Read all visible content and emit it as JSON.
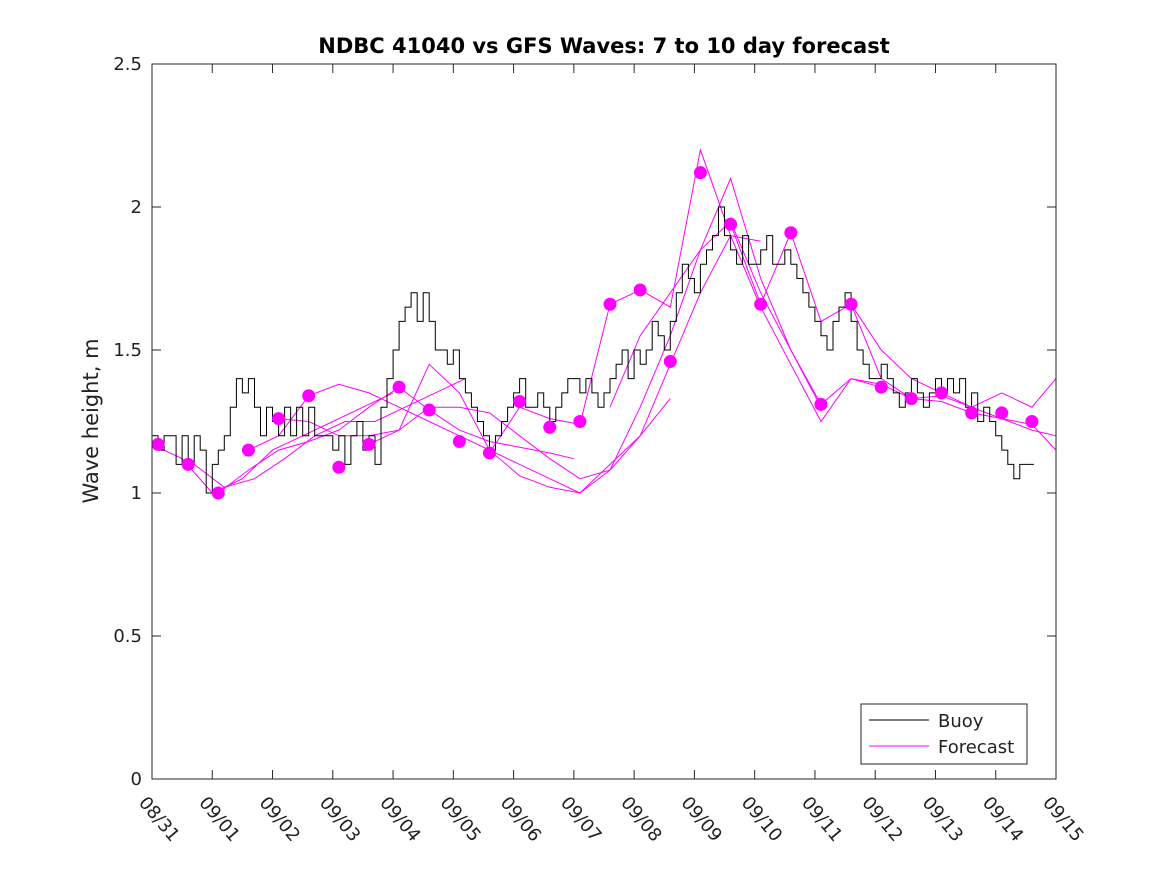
{
  "chart_data": {
    "type": "line",
    "title": "NDBC 41040 vs GFS Waves: 7 to 10 day forecast",
    "xlabel": "",
    "ylabel": "Wave height, m",
    "xlim": [
      0,
      15
    ],
    "ylim": [
      0,
      2.5
    ],
    "x_tick_labels": [
      "08/31",
      "09/01",
      "09/02",
      "09/03",
      "09/04",
      "09/05",
      "09/06",
      "09/07",
      "09/08",
      "09/09",
      "09/10",
      "09/11",
      "09/12",
      "09/13",
      "09/14",
      "09/15"
    ],
    "y_ticks": [
      0,
      0.5,
      1,
      1.5,
      2,
      2.5
    ],
    "y_tick_labels": [
      "0",
      "0.5",
      "1",
      "1.5",
      "2",
      "2.5"
    ],
    "legend": {
      "position": "bottom-right",
      "entries": [
        "Buoy",
        "Forecast"
      ]
    },
    "colors": {
      "buoy": "#000000",
      "forecast": "#ff00ff"
    },
    "series": [
      {
        "name": "Buoy",
        "x": [
          0,
          0.1,
          0.2,
          0.3,
          0.4,
          0.5,
          0.6,
          0.7,
          0.8,
          0.9,
          1.0,
          1.1,
          1.2,
          1.3,
          1.4,
          1.5,
          1.6,
          1.7,
          1.8,
          1.9,
          2.0,
          2.1,
          2.2,
          2.3,
          2.4,
          2.5,
          2.6,
          2.7,
          2.8,
          2.9,
          3.0,
          3.1,
          3.2,
          3.3,
          3.4,
          3.5,
          3.6,
          3.7,
          3.8,
          3.9,
          4.0,
          4.1,
          4.2,
          4.3,
          4.4,
          4.5,
          4.6,
          4.7,
          4.8,
          4.9,
          5.0,
          5.1,
          5.2,
          5.3,
          5.4,
          5.5,
          5.6,
          5.7,
          5.8,
          5.9,
          6.0,
          6.1,
          6.2,
          6.3,
          6.4,
          6.5,
          6.6,
          6.7,
          6.8,
          6.9,
          7.0,
          7.1,
          7.2,
          7.3,
          7.4,
          7.5,
          7.6,
          7.7,
          7.8,
          7.9,
          8.0,
          8.1,
          8.2,
          8.3,
          8.4,
          8.5,
          8.6,
          8.7,
          8.8,
          8.9,
          9.0,
          9.1,
          9.2,
          9.3,
          9.4,
          9.5,
          9.6,
          9.7,
          9.8,
          9.9,
          10.0,
          10.1,
          10.2,
          10.3,
          10.4,
          10.5,
          10.6,
          10.7,
          10.8,
          10.9,
          11.0,
          11.1,
          11.2,
          11.3,
          11.4,
          11.5,
          11.6,
          11.7,
          11.8,
          11.9,
          12.0,
          12.1,
          12.2,
          12.3,
          12.4,
          12.5,
          12.6,
          12.7,
          12.8,
          12.9,
          13.0,
          13.1,
          13.2,
          13.3,
          13.4,
          13.5,
          13.6,
          13.7,
          13.8,
          13.9,
          14.0,
          14.1,
          14.2,
          14.3,
          14.4,
          14.5
        ],
        "values": [
          1.2,
          1.15,
          1.2,
          1.2,
          1.1,
          1.2,
          1.1,
          1.2,
          1.15,
          1.0,
          1.1,
          1.15,
          1.2,
          1.3,
          1.4,
          1.35,
          1.4,
          1.3,
          1.2,
          1.3,
          1.25,
          1.2,
          1.3,
          1.2,
          1.3,
          1.2,
          1.3,
          1.2,
          1.2,
          1.2,
          1.15,
          1.2,
          1.1,
          1.2,
          1.25,
          1.15,
          1.2,
          1.1,
          1.3,
          1.4,
          1.5,
          1.6,
          1.65,
          1.7,
          1.6,
          1.7,
          1.6,
          1.5,
          1.5,
          1.45,
          1.5,
          1.4,
          1.35,
          1.3,
          1.25,
          1.2,
          1.15,
          1.2,
          1.25,
          1.3,
          1.35,
          1.4,
          1.3,
          1.3,
          1.35,
          1.3,
          1.25,
          1.3,
          1.35,
          1.4,
          1.4,
          1.35,
          1.4,
          1.35,
          1.3,
          1.35,
          1.4,
          1.45,
          1.5,
          1.4,
          1.5,
          1.45,
          1.5,
          1.6,
          1.55,
          1.5,
          1.6,
          1.7,
          1.8,
          1.75,
          1.7,
          1.8,
          1.85,
          1.9,
          2.0,
          1.9,
          1.85,
          1.8,
          1.9,
          1.8,
          1.8,
          1.85,
          1.9,
          1.8,
          1.8,
          1.85,
          1.8,
          1.75,
          1.7,
          1.65,
          1.6,
          1.55,
          1.5,
          1.6,
          1.65,
          1.7,
          1.6,
          1.5,
          1.45,
          1.4,
          1.4,
          1.45,
          1.4,
          1.35,
          1.3,
          1.35,
          1.4,
          1.35,
          1.3,
          1.35,
          1.4,
          1.35,
          1.4,
          1.35,
          1.4,
          1.3,
          1.35,
          1.25,
          1.3,
          1.25,
          1.2,
          1.15,
          1.1,
          1.05,
          1.1,
          1.1
        ]
      },
      {
        "name": "Forecast",
        "lines": [
          {
            "x": [
              0,
              0.5,
              1,
              1.5,
              2,
              2.5,
              3,
              3.5,
              4
            ],
            "values": [
              1.17,
              1.12,
              1.0,
              1.05,
              1.15,
              1.2,
              1.25,
              1.3,
              1.35
            ]
          },
          {
            "x": [
              0.7,
              1.2,
              1.7,
              2.2,
              2.7,
              3.2,
              3.7,
              4.2,
              4.7,
              5.2
            ],
            "values": [
              1.1,
              1.02,
              1.05,
              1.12,
              1.2,
              1.25,
              1.25,
              1.3,
              1.35,
              1.4
            ]
          },
          {
            "x": [
              1.1,
              1.6,
              2.1,
              2.6,
              3.1,
              3.6,
              4.1,
              4.6,
              5.1,
              5.6,
              6.1,
              6.6,
              7.0
            ],
            "values": [
              1.0,
              1.08,
              1.15,
              1.18,
              1.22,
              1.3,
              1.37,
              1.29,
              1.22,
              1.18,
              1.16,
              1.14,
              1.12
            ]
          },
          {
            "x": [
              1.6,
              2.1,
              2.6,
              3.1,
              3.6,
              4.1,
              4.6,
              5.1,
              5.6,
              6.1,
              6.6,
              7.1,
              7.6,
              8.1,
              8.6
            ],
            "values": [
              1.15,
              1.2,
              1.34,
              1.38,
              1.35,
              1.3,
              1.25,
              1.2,
              1.15,
              1.1,
              1.05,
              1.0,
              1.1,
              1.2,
              1.33
            ]
          },
          {
            "x": [
              2.1,
              2.6,
              3.1,
              3.6,
              4.1,
              4.6,
              5.1,
              5.6,
              6.1,
              6.6,
              7.1,
              7.6,
              8.1,
              8.6,
              9.1,
              9.6,
              10.1
            ],
            "values": [
              1.26,
              1.25,
              1.2,
              1.2,
              1.22,
              1.45,
              1.35,
              1.15,
              1.06,
              1.02,
              1.0,
              1.08,
              1.2,
              1.45,
              1.7,
              1.9,
              1.88
            ]
          },
          {
            "x": [
              3.6,
              4.1,
              4.6,
              5.1,
              5.6,
              6.1,
              6.6,
              7.1,
              7.6,
              8.1,
              8.6,
              9.1,
              9.6,
              10.1,
              10.6,
              11.1
            ],
            "values": [
              1.17,
              1.22,
              1.3,
              1.3,
              1.28,
              1.2,
              1.12,
              1.05,
              1.08,
              1.3,
              1.55,
              1.85,
              2.1,
              1.75,
              1.5,
              1.3
            ]
          },
          {
            "x": [
              5.6,
              6.1,
              6.6,
              7.1,
              7.6,
              8.1,
              8.6,
              9.1,
              9.6,
              10.1,
              10.6,
              11.1,
              11.6,
              12.1
            ],
            "values": [
              1.14,
              1.3,
              1.26,
              1.24,
              1.66,
              1.71,
              1.65,
              2.2,
              1.9,
              1.65,
              1.45,
              1.25,
              1.4,
              1.37
            ]
          },
          {
            "x": [
              7.6,
              8.1,
              8.6,
              9.1,
              9.6,
              10.1,
              10.6,
              11.1,
              11.6,
              12.1,
              12.6,
              13.1,
              13.6,
              14.1,
              14.6,
              15.0
            ],
            "values": [
              1.3,
              1.55,
              1.7,
              1.85,
              1.95,
              1.7,
              1.5,
              1.31,
              1.4,
              1.38,
              1.33,
              1.34,
              1.3,
              1.26,
              1.22,
              1.2
            ]
          },
          {
            "x": [
              9.6,
              10.1,
              10.6,
              11.1,
              11.6,
              12.1,
              12.6,
              13.1,
              13.6,
              14.1,
              14.6,
              15.0
            ],
            "values": [
              1.94,
              1.66,
              1.91,
              1.6,
              1.66,
              1.4,
              1.33,
              1.32,
              1.28,
              1.26,
              1.24,
              1.15
            ]
          },
          {
            "x": [
              11.6,
              12.1,
              12.6,
              13.1,
              13.6,
              14.1,
              14.6,
              15.0
            ],
            "values": [
              1.66,
              1.5,
              1.4,
              1.35,
              1.3,
              1.35,
              1.3,
              1.4
            ]
          }
        ],
        "marker_x": [
          0.1,
          0.6,
          1.1,
          1.6,
          2.1,
          2.6,
          3.1,
          3.6,
          4.1,
          4.6,
          5.1,
          5.6,
          6.1,
          6.6,
          7.1,
          7.6,
          8.1,
          8.6,
          9.1,
          9.6,
          10.1,
          10.6,
          11.1,
          11.6,
          12.1,
          12.6,
          13.1,
          13.6,
          14.1,
          14.6
        ],
        "marker_values": [
          1.17,
          1.1,
          1.0,
          1.15,
          1.26,
          1.34,
          1.09,
          1.17,
          1.37,
          1.29,
          1.18,
          1.14,
          1.32,
          1.23,
          1.25,
          1.66,
          1.71,
          1.46,
          2.12,
          1.94,
          1.66,
          1.91,
          1.31,
          1.66,
          1.37,
          1.33,
          1.35,
          1.28,
          1.28,
          1.25
        ]
      }
    ]
  }
}
